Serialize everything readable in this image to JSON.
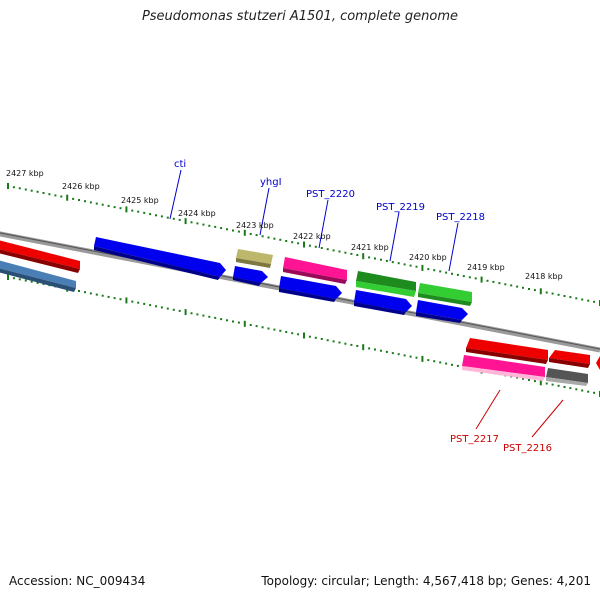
{
  "title": "Pseudomonas stutzeri A1501, complete genome",
  "footer": {
    "accession": "Accession: NC_009434",
    "summary": "Topology: circular; Length: 4,567,418 bp; Genes: 4,201"
  },
  "scale_labels": [
    "2427 kbp",
    "2426 kbp",
    "2425 kbp",
    "2424 kbp",
    "2423 kbp",
    "2422 kbp",
    "2421 kbp",
    "2420 kbp",
    "2419 kbp",
    "2418 kbp"
  ],
  "gene_labels_forward": [
    "cti",
    "yhgI",
    "PST_2220",
    "PST_2219",
    "PST_2218"
  ],
  "gene_labels_reverse": [
    "PST_2217",
    "PST_2216"
  ],
  "colors": {
    "forward_label": "#0000cc",
    "reverse_label": "#cc0000",
    "backbone": "#888888",
    "tick": "#1a7a1a"
  }
}
